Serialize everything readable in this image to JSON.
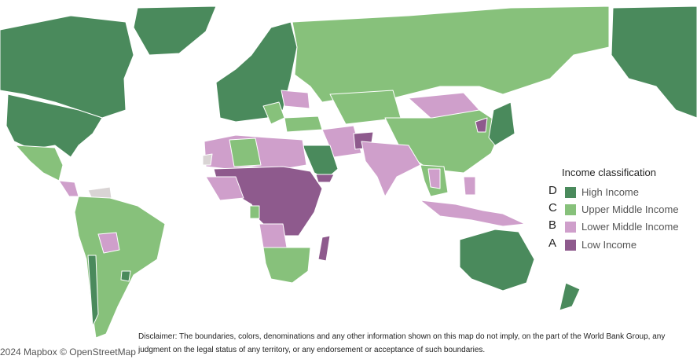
{
  "colors": {
    "high_income": "#4a8a5c",
    "upper_middle_income": "#87c17b",
    "lower_middle_income": "#cf9fcb",
    "low_income": "#8e5a8d",
    "no_data": "#d9d4d4",
    "border": "#ffffff"
  },
  "legend": {
    "title": "Income classification",
    "items": [
      {
        "letter": "D",
        "label": "High Income",
        "color": "#4a8a5c"
      },
      {
        "letter": "C",
        "label": "Upper Middle Income",
        "color": "#87c17b"
      },
      {
        "letter": "B",
        "label": "Lower Middle Income",
        "color": "#cf9fcb"
      },
      {
        "letter": "A",
        "label": "Low Income",
        "color": "#8e5a8d"
      }
    ]
  },
  "disclaimer": "Disclaimer: The boundaries, colors, denominations and any other information shown on this map do not imply, on the part of the World Bank Group, any judgment on the legal status of any territory, or any endorsement or acceptance of such boundaries.",
  "attribution": {
    "mapbox": "2024 Mapbox",
    "osm": "© OpenStreetMap"
  }
}
